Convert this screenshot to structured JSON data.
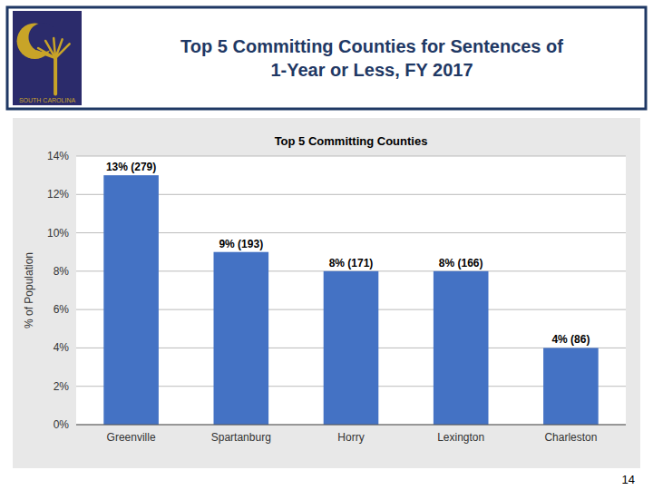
{
  "chart_data": {
    "type": "bar",
    "title": "Top 5 Committing Counties for Sentences of\n1-Year or Less, FY 2017",
    "subtitle": "Top 5 Committing Counties",
    "categories": [
      "Greenville",
      "Spartanburg",
      "Horry",
      "Lexington",
      "Charleston"
    ],
    "values": [
      13,
      9,
      8,
      8,
      4
    ],
    "value_labels": [
      "13% (279)",
      "9% (193)",
      "8% (171)",
      "8% (166)",
      "4% (86)"
    ],
    "data_labels": true,
    "color": "#4472C4",
    "ylabel": "% of Population",
    "ylim": [
      0,
      14
    ],
    "yticks": [
      {
        "value": 0,
        "label": "0%"
      },
      {
        "value": 2,
        "label": "2%"
      },
      {
        "value": 4,
        "label": "4%"
      },
      {
        "value": 6,
        "label": "6%"
      },
      {
        "value": 8,
        "label": "8%"
      },
      {
        "value": 10,
        "label": "10%"
      },
      {
        "value": 12,
        "label": "12%"
      },
      {
        "value": 14,
        "label": "14%"
      }
    ],
    "grid": true,
    "annotations": [
      "SOUTH CAROLINA",
      "14"
    ]
  }
}
